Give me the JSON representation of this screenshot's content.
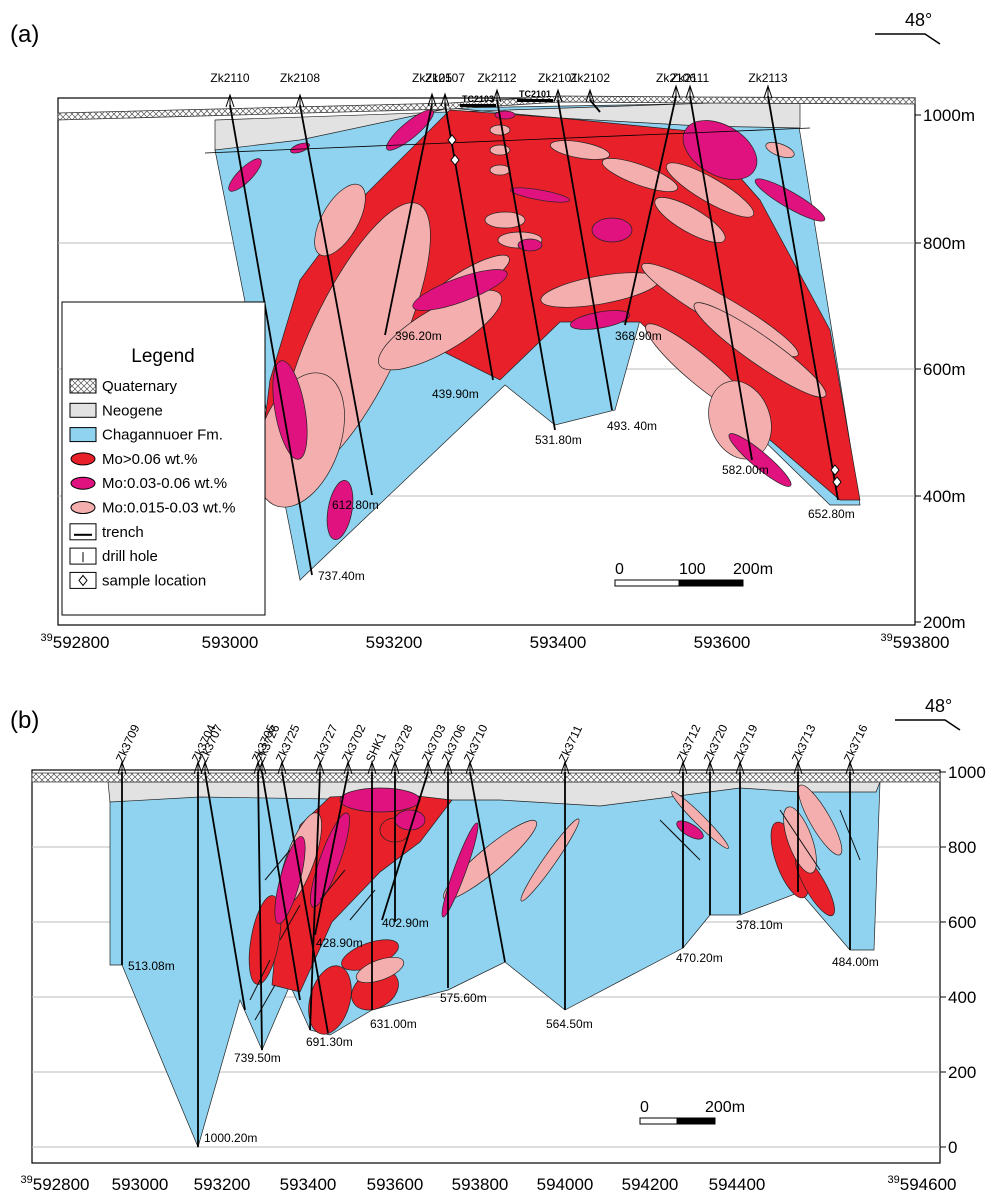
{
  "panels": [
    {
      "label": "(a)",
      "orientation": "48°",
      "y_ticks": [
        "1000m",
        "800m",
        "600m",
        "400m",
        "200m"
      ],
      "x_ticks": [
        {
          "sup": "39",
          "label": "592800"
        },
        "593000",
        "593200",
        "593400",
        "593600",
        {
          "sup": "39",
          "label": "593800"
        }
      ],
      "drill_holes": [
        {
          "name": "Zk2110",
          "depth": "737.40m"
        },
        {
          "name": "Zk2108",
          "depth": "612.80m"
        },
        {
          "name": "Zk2105",
          "depth": "396.20m"
        },
        {
          "name": "Zk2107",
          "depth": "439.90m"
        },
        {
          "name": "Zk2112",
          "depth": "531.80m"
        },
        {
          "name": "Zk2101",
          "depth": "493. 40m"
        },
        {
          "name": "Zk2102"
        },
        {
          "name": "Zk2106",
          "depth": "368.90m"
        },
        {
          "name": "Zk2111",
          "depth": "582.00m"
        },
        {
          "name": "Zk2113",
          "depth": "652.80m"
        }
      ],
      "trenches": [
        "TC2103",
        "TC2101"
      ],
      "scale_bar": [
        "0",
        "100",
        "200m"
      ]
    },
    {
      "label": "(b)",
      "orientation": "48°",
      "y_ticks": [
        "1000",
        "800",
        "600",
        "400",
        "200",
        "0"
      ],
      "x_ticks": [
        {
          "sup": "39",
          "label": "592800"
        },
        "593000",
        "593200",
        "593400",
        "593600",
        "593800",
        "594000",
        "594200",
        "594400",
        {
          "sup": "39",
          "label": "594600"
        }
      ],
      "drill_holes": [
        {
          "name": "Zk3709",
          "depth": "513.08m"
        },
        {
          "name": "Zk3704",
          "depth": "1000.20m"
        },
        {
          "name": "Zk3707"
        },
        {
          "name": "Zk3705",
          "depth": "739.50m"
        },
        {
          "name": "Zk3726"
        },
        {
          "name": "Zk3725",
          "depth": "691.30m"
        },
        {
          "name": "Zk3727"
        },
        {
          "name": "Zk3702",
          "depth": "428.90m"
        },
        {
          "name": "SHK1",
          "depth": "631.00m"
        },
        {
          "name": "Zk3728",
          "depth": "402.90m"
        },
        {
          "name": "Zk3703"
        },
        {
          "name": "Zk3706",
          "depth": "575.60m"
        },
        {
          "name": "Zk3710"
        },
        {
          "name": "Zk3711",
          "depth": "564.50m"
        },
        {
          "name": "Zk3712",
          "depth": "470.20m"
        },
        {
          "name": "Zk3720"
        },
        {
          "name": "Zk3719",
          "depth": "378.10m"
        },
        {
          "name": "Zk3713"
        },
        {
          "name": "Zk3716",
          "depth": "484.00m"
        }
      ],
      "scale_bar": [
        "0",
        "200m"
      ]
    }
  ],
  "legend": {
    "title": "Legend",
    "items": [
      "Quaternary",
      "Neogene",
      "Chagannuoer Fm.",
      "Mo>0.06 wt.%",
      "Mo:0.03-0.06 wt.%",
      "Mo:0.015-0.03 wt.%",
      "trench",
      "drill hole",
      "sample location"
    ]
  }
}
